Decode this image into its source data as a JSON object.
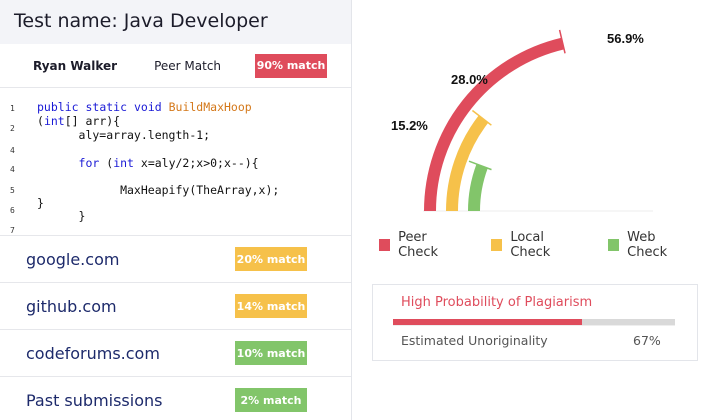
{
  "test": {
    "title": "Test name: Java Developer"
  },
  "match": {
    "candidate": "Ryan Walker",
    "peer_label": "Peer Match",
    "badge": "90% match"
  },
  "code": {
    "lines": [
      {
        "num": "1",
        "text": "public static void BuildMaxHoop"
      },
      {
        "num": "2",
        "text": "(int[] arr){"
      },
      {
        "num": "2",
        "text": "      aly=array.length-1;"
      },
      {
        "num": "4",
        "text": ""
      },
      {
        "num": "4",
        "text": "      for (int x=aly/2;x>0;x--){"
      },
      {
        "num": "5",
        "text": ""
      },
      {
        "num": "5",
        "text": "            MaxHeapify(TheArray,x);"
      },
      {
        "num": "6",
        "text": "}"
      },
      {
        "num": "7",
        "text": "      }"
      }
    ]
  },
  "sources": [
    {
      "name": "google.com",
      "badge": "20% match",
      "color": "yellow"
    },
    {
      "name": "github.com",
      "badge": "14% match",
      "color": "yellow"
    },
    {
      "name": "codeforums.com",
      "badge": "10% match",
      "color": "green"
    },
    {
      "name": "Past submissions",
      "badge": "2% match",
      "color": "green"
    }
  ],
  "chart_data": {
    "type": "radial-bar",
    "series": [
      {
        "name": "Peer Check",
        "value": 56.9,
        "label": "56.9%",
        "color": "#df4c5c"
      },
      {
        "name": "Local Check",
        "value": 28.0,
        "label": "28.0%",
        "color": "#f6c14a"
      },
      {
        "name": "Web Check",
        "value": 15.2,
        "label": "15.2%",
        "color": "#82c56a"
      }
    ]
  },
  "plagiarism": {
    "title": "High Probability of Plagiarism",
    "label": "Estimated Unoriginality",
    "value": "67%",
    "fraction": 0.67
  }
}
